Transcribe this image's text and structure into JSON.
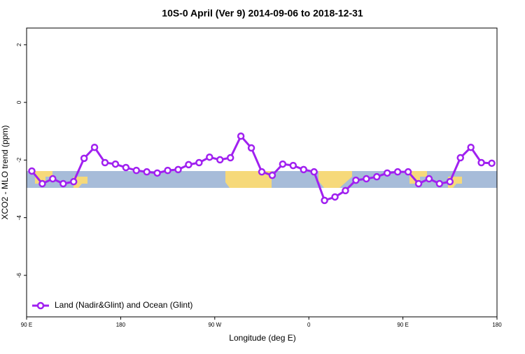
{
  "chart_data": {
    "type": "line",
    "title": "10S-0 April (Ver 9)   2014-09-06 to 2018-12-31",
    "x_label": "Longitude (deg E)",
    "y_label": "XCO2 - MLO trend (ppm)",
    "x": [
      95,
      105,
      115,
      125,
      135,
      145,
      155,
      165,
      175,
      185,
      195,
      205,
      215,
      225,
      235,
      245,
      255,
      265,
      275,
      285,
      295,
      305,
      315,
      325,
      335,
      345,
      355,
      365,
      375,
      385,
      395,
      405,
      415,
      425,
      435,
      445,
      455,
      465,
      475,
      485,
      495,
      505,
      515,
      525,
      535
    ],
    "series": [
      {
        "name": "Land (Nadir&Glint) and Ocean (Glint)",
        "color": "#a020f0",
        "values": [
          -2.38,
          -2.82,
          -2.65,
          -2.82,
          -2.75,
          -1.94,
          -1.56,
          -2.09,
          -2.14,
          -2.26,
          -2.36,
          -2.41,
          -2.45,
          -2.36,
          -2.33,
          -2.16,
          -2.09,
          -1.9,
          -1.99,
          -1.92,
          -1.17,
          -1.58,
          -2.41,
          -2.53,
          -2.14,
          -2.19,
          -2.33,
          -2.41,
          -3.4,
          -3.28,
          -3.06,
          -2.7,
          -2.65,
          -2.58,
          -2.45,
          -2.41,
          -2.41,
          -2.82,
          -2.65,
          -2.82,
          -2.75,
          -1.92,
          -1.56,
          -2.09,
          -2.11
        ]
      }
    ],
    "xlim": [
      90,
      540
    ],
    "xticks": [
      {
        "value": 90,
        "label": "90 E"
      },
      180,
      {
        "value": 270,
        "label": "90 W"
      },
      {
        "value": 360,
        "label": "0"
      },
      {
        "value": 450,
        "label": "90 E"
      },
      {
        "value": 540,
        "label": "180"
      }
    ],
    "ylim": [
      -7.44,
      2.58
    ],
    "yticks": [
      -6,
      -4,
      -2,
      0,
      2
    ],
    "legend": "bottom-left"
  }
}
